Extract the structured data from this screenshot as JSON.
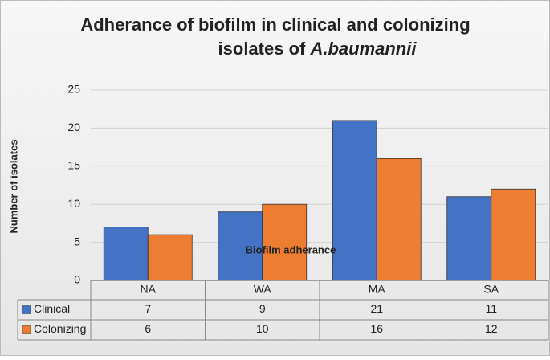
{
  "chart_data": {
    "type": "bar",
    "title": "Adherance of biofilm in clinical and colonizing isolates of",
    "title_italic": "A.baumannii",
    "x_label": "Biofilm adherance",
    "y_label": "Number of isolates",
    "categories": [
      "NA",
      "WA",
      "MA",
      "SA"
    ],
    "series": [
      {
        "name": "Clinical",
        "color": "#4472c4",
        "values": [
          7,
          9,
          21,
          11
        ]
      },
      {
        "name": "Colonizing",
        "color": "#ed7d31",
        "values": [
          6,
          10,
          16,
          12
        ]
      }
    ],
    "ylim": [
      0,
      25
    ],
    "yticks": [
      0,
      5,
      10,
      15,
      20,
      25
    ],
    "grid": true,
    "data_table": true
  }
}
